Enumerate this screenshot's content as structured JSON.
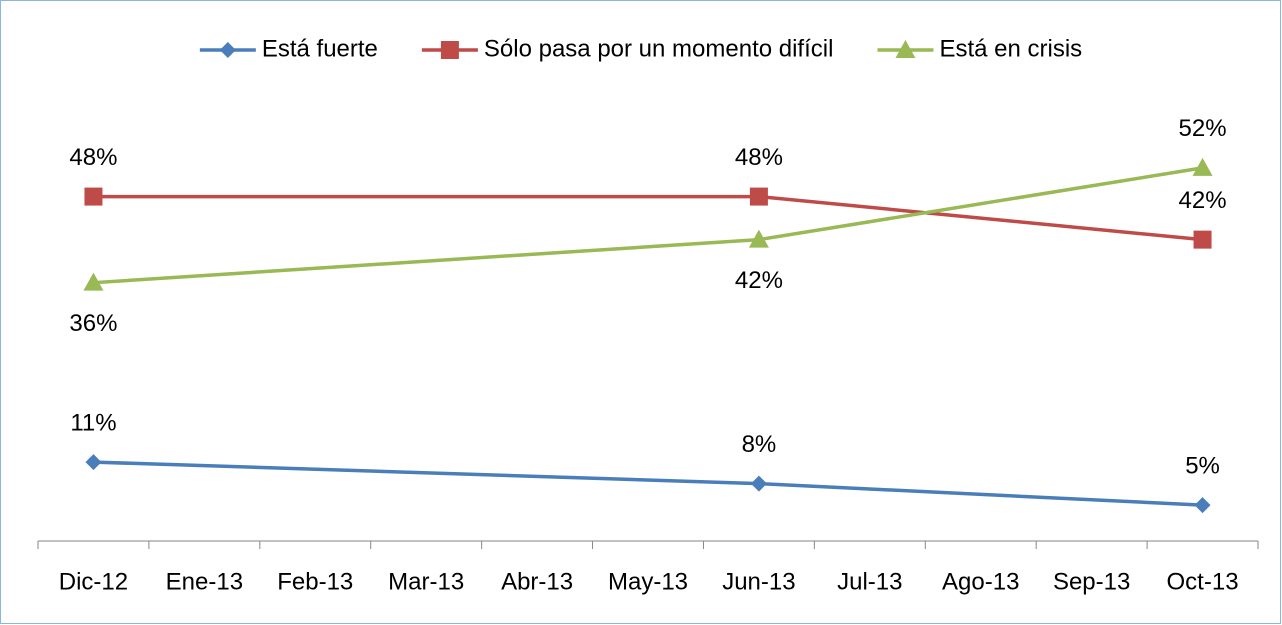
{
  "chart_data": {
    "type": "line",
    "categories": [
      "Dic-12",
      "Ene-13",
      "Feb-13",
      "Mar-13",
      "Abr-13",
      "May-13",
      "Jun-13",
      "Jul-13",
      "Ago-13",
      "Sep-13",
      "Oct-13"
    ],
    "series": [
      {
        "name": "Está fuerte",
        "color": "#4a7ebb",
        "marker": "diamond",
        "values": [
          11,
          null,
          null,
          null,
          null,
          null,
          8,
          null,
          null,
          null,
          5
        ],
        "value_labels": [
          "11%",
          null,
          null,
          null,
          null,
          null,
          "8%",
          null,
          null,
          null,
          "5%"
        ]
      },
      {
        "name": "Sólo pasa por un momento difícil",
        "color": "#be4b48",
        "marker": "square",
        "values": [
          48,
          null,
          null,
          null,
          null,
          null,
          48,
          null,
          null,
          null,
          42
        ],
        "value_labels": [
          "48%",
          null,
          null,
          null,
          null,
          null,
          "48%",
          null,
          null,
          null,
          "42%"
        ]
      },
      {
        "name": "Está en crisis",
        "color": "#98b954",
        "marker": "triangle",
        "values": [
          36,
          null,
          null,
          null,
          null,
          null,
          42,
          null,
          null,
          null,
          52
        ],
        "value_labels": [
          "36%",
          null,
          null,
          null,
          null,
          null,
          "42%",
          null,
          null,
          null,
          "52%"
        ]
      }
    ],
    "ylim": [
      0,
      57
    ],
    "legend": "top"
  }
}
